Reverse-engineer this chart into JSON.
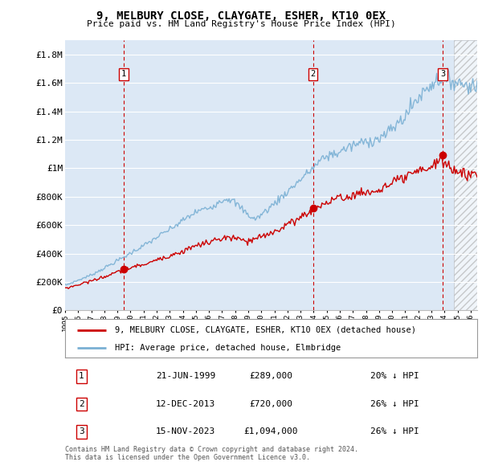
{
  "title": "9, MELBURY CLOSE, CLAYGATE, ESHER, KT10 0EX",
  "subtitle": "Price paid vs. HM Land Registry's House Price Index (HPI)",
  "ylim": [
    0,
    1900000
  ],
  "yticks": [
    0,
    200000,
    400000,
    600000,
    800000,
    1000000,
    1200000,
    1400000,
    1600000,
    1800000
  ],
  "ytick_labels": [
    "£0",
    "£200K",
    "£400K",
    "£600K",
    "£800K",
    "£1M",
    "£1.2M",
    "£1.4M",
    "£1.6M",
    "£1.8M"
  ],
  "hpi_color": "#7ab0d4",
  "price_color": "#cc0000",
  "sale_color": "#cc0000",
  "vline_color": "#cc0000",
  "bg_color": "#dce8f5",
  "grid_color": "#ffffff",
  "sales": [
    {
      "date_num": 1999.47,
      "price": 289000,
      "label": "1"
    },
    {
      "date_num": 2013.95,
      "price": 720000,
      "label": "2"
    },
    {
      "date_num": 2023.87,
      "price": 1094000,
      "label": "3"
    }
  ],
  "legend_entries": [
    {
      "label": "9, MELBURY CLOSE, CLAYGATE, ESHER, KT10 0EX (detached house)",
      "color": "#cc0000"
    },
    {
      "label": "HPI: Average price, detached house, Elmbridge",
      "color": "#7ab0d4"
    }
  ],
  "table_rows": [
    {
      "num": "1",
      "date": "21-JUN-1999",
      "price": "£289,000",
      "change": "20% ↓ HPI"
    },
    {
      "num": "2",
      "date": "12-DEC-2013",
      "price": "£720,000",
      "change": "26% ↓ HPI"
    },
    {
      "num": "3",
      "date": "15-NOV-2023",
      "price": "£1,094,000",
      "change": "26% ↓ HPI"
    }
  ],
  "footer": "Contains HM Land Registry data © Crown copyright and database right 2024.\nThis data is licensed under the Open Government Licence v3.0.",
  "xmin": 1995.0,
  "xmax": 2026.5,
  "hatch_xmin": 2024.7,
  "hatch_xmax": 2026.5
}
